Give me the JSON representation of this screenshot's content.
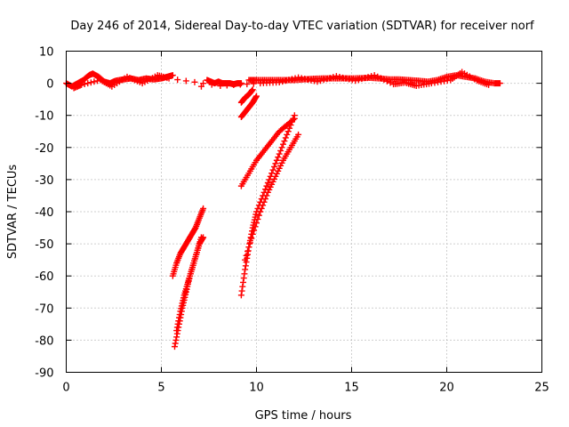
{
  "chart_data": {
    "type": "scatter",
    "title": "Day 246 of 2014, Sidereal Day-to-day VTEC variation (SDTVAR) for receiver norf",
    "xlabel": "GPS time / hours",
    "ylabel": "SDTVAR / TECUs",
    "xlim": [
      0,
      25
    ],
    "ylim": [
      -90,
      10
    ],
    "xticks": [
      0,
      5,
      10,
      15,
      20,
      25
    ],
    "yticks": [
      10,
      0,
      -10,
      -20,
      -30,
      -40,
      -50,
      -60,
      -70,
      -80,
      -90
    ],
    "grid": true,
    "marker": "+",
    "color": "#ff0000",
    "segments": [
      {
        "name": "baseline-early",
        "x": [
          0,
          0.3,
          0.6,
          0.9,
          1.2,
          1.4,
          1.7,
          2.0,
          2.3,
          2.6,
          3.0,
          3.4,
          3.8,
          4.2,
          4.6,
          5.0,
          5.3,
          5.6
        ],
        "y": [
          0,
          -1,
          0,
          1,
          2.5,
          3,
          2,
          0.5,
          0,
          0.8,
          1.2,
          1.5,
          1.0,
          1.5,
          1.2,
          1.5,
          2,
          2.5
        ]
      },
      {
        "name": "baseline-gap",
        "x": [
          7.4,
          7.6,
          7.8,
          8.0,
          8.2,
          8.4,
          8.6,
          8.8,
          9.0,
          9.2
        ],
        "y": [
          1,
          0.5,
          0,
          0.5,
          0,
          0,
          0,
          -0.3,
          0,
          0
        ]
      },
      {
        "name": "baseline-late",
        "x": [
          9.6,
          10,
          10.5,
          11,
          11.5,
          12,
          12.5,
          13,
          13.5,
          14,
          14.5,
          15,
          15.5,
          16,
          16.5,
          17,
          17.5,
          18,
          18.5,
          19,
          19.5,
          20,
          20.5,
          21,
          21.5,
          22,
          22.5,
          22.8
        ],
        "y": [
          1,
          1,
          1,
          1,
          1,
          1,
          1.2,
          1.4,
          1.5,
          1.5,
          1.5,
          1.5,
          1.6,
          1.7,
          1.5,
          1.2,
          1.2,
          1,
          0.8,
          0.5,
          1,
          2,
          2.5,
          2,
          1.5,
          0.5,
          0,
          0
        ]
      },
      {
        "name": "baseline-noise",
        "x": [
          0.4,
          0.8,
          1.8,
          2.4,
          3.2,
          4.0,
          4.8,
          5.4,
          8.1,
          10.2,
          11.2,
          12.2,
          13.2,
          14.2,
          15.2,
          16.2,
          17.2,
          17.8,
          18.4,
          19.2,
          20.2,
          20.8,
          21.6,
          22.2
        ],
        "y": [
          -1.5,
          -0.5,
          1,
          -1,
          2,
          0,
          2.5,
          1.5,
          -0.8,
          0,
          0.3,
          1.8,
          0.5,
          2.2,
          0.8,
          2.5,
          -0.3,
          0.2,
          -0.8,
          0,
          1,
          3.5,
          0.8,
          -0.5
        ]
      },
      {
        "name": "outlier",
        "x": [
          7.1
        ],
        "y": [
          -1
        ]
      },
      {
        "name": "dip-a-upper",
        "x": [
          5.6,
          5.8,
          6.0,
          6.2,
          6.4,
          6.6,
          6.8,
          7.0,
          7.2
        ],
        "y": [
          -60,
          -56,
          -53,
          -51,
          -49,
          -47,
          -45,
          -42,
          -39
        ]
      },
      {
        "name": "dip-a-lower",
        "x": [
          5.7,
          5.9,
          6.1,
          6.3,
          6.5,
          6.7,
          6.9,
          7.1
        ],
        "y": [
          -82,
          -76,
          -70,
          -65,
          -60,
          -56,
          -52,
          -48
        ]
      },
      {
        "name": "dip-a-mid",
        "x": [
          5.8,
          6.0,
          6.2,
          6.4,
          6.6,
          6.8,
          7.0,
          7.2
        ],
        "y": [
          -77,
          -71,
          -66,
          -62,
          -58,
          -54,
          -50,
          -48
        ]
      },
      {
        "name": "short-b",
        "x": [
          9.2,
          9.4,
          9.6,
          9.8,
          10.0
        ],
        "y": [
          -10.5,
          -9,
          -7.5,
          -6,
          -4
        ]
      },
      {
        "name": "short-c",
        "x": [
          9.2,
          9.4,
          9.6,
          9.8
        ],
        "y": [
          -6,
          -4.5,
          -3.5,
          -2
        ]
      },
      {
        "name": "dip-b-main",
        "x": [
          9.2,
          9.4,
          9.6,
          9.8,
          10.0,
          10.4,
          10.8,
          11.2,
          11.6,
          12.0
        ],
        "y": [
          -66,
          -58,
          -51,
          -45,
          -40,
          -34,
          -28,
          -22,
          -16,
          -10
        ]
      },
      {
        "name": "dip-b-upper",
        "x": [
          9.2,
          9.6,
          10.0,
          10.4,
          10.8,
          11.2,
          11.6,
          12.0
        ],
        "y": [
          -32,
          -28,
          -24,
          -21,
          -18,
          -15,
          -13,
          -11
        ]
      },
      {
        "name": "dip-b-lower",
        "x": [
          9.4,
          9.8,
          10.2,
          10.6,
          11.0,
          11.4,
          11.8,
          12.2
        ],
        "y": [
          -55,
          -47,
          -40,
          -34,
          -29,
          -24,
          -20,
          -16
        ]
      }
    ]
  }
}
